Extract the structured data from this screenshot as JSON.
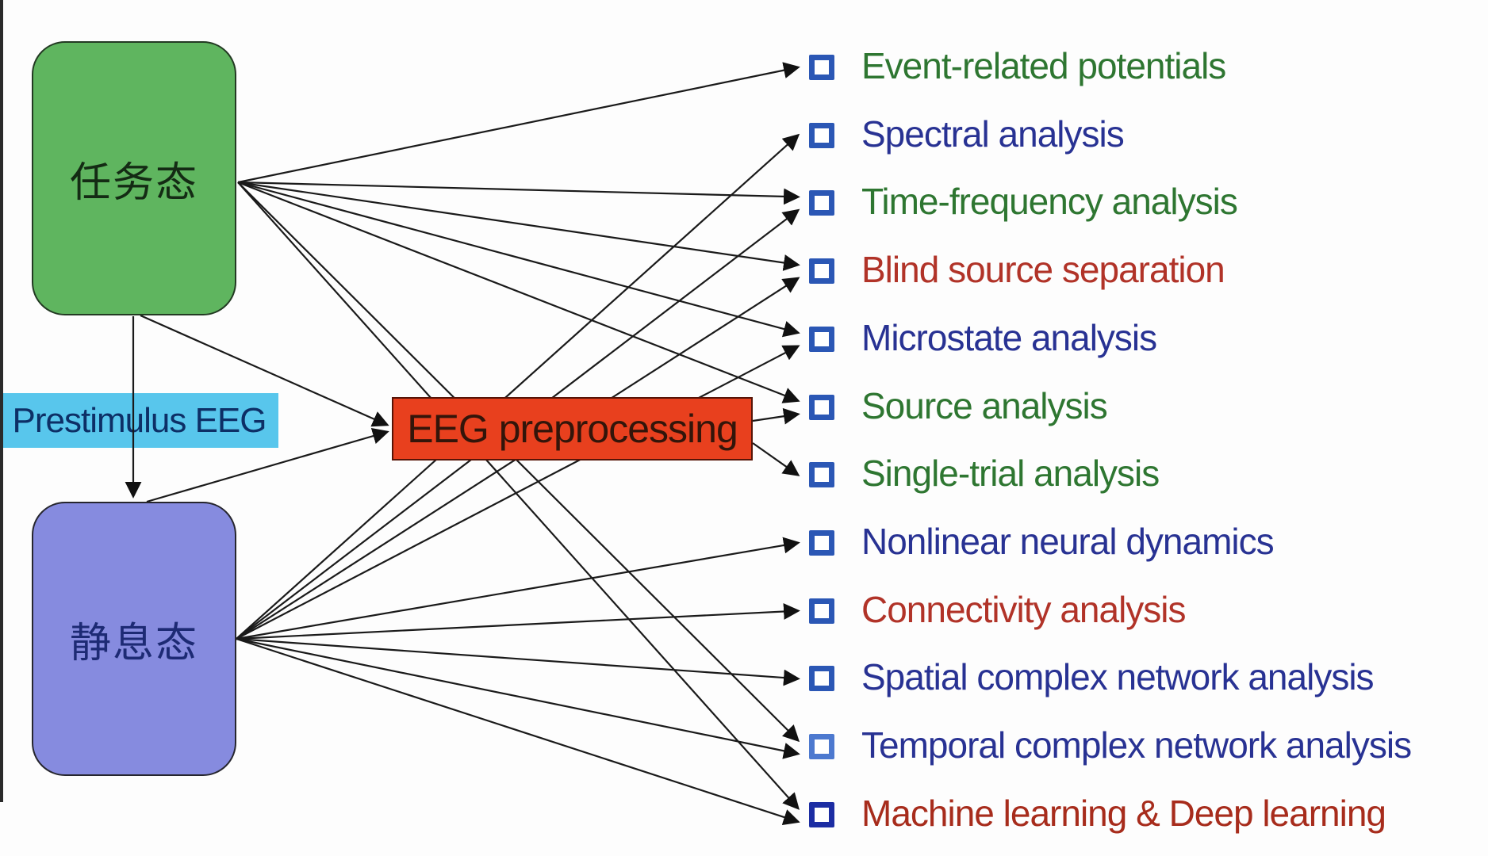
{
  "arrow_color": "#1a1a1a",
  "nodes": {
    "task_state": {
      "label": "任务态",
      "fill": "#5fb55f",
      "text_color": "#142b14"
    },
    "resting_state": {
      "label": "静息态",
      "fill": "#868bdf",
      "text_color": "#1d2a74"
    },
    "prestimulus": {
      "label": "Prestimulus EEG",
      "fill": "#58c6ec",
      "text_color": "#0d2f66"
    },
    "preprocessing": {
      "label": "EEG preprocessing",
      "fill": "#e8401e",
      "text_color": "#33150a"
    }
  },
  "methods": [
    {
      "id": "erp",
      "label": "Event-related potentials",
      "color": "#2e7631",
      "bullet": "#2b57b5"
    },
    {
      "id": "spectral",
      "label": "Spectral analysis",
      "color": "#283293",
      "bullet": "#2b57b5"
    },
    {
      "id": "time_frequency",
      "label": "Time-frequency analysis",
      "color": "#2e7631",
      "bullet": "#2b57b5"
    },
    {
      "id": "blind_source",
      "label": "Blind source separation",
      "color": "#b13328",
      "bullet": "#2b57b5"
    },
    {
      "id": "microstate",
      "label": "Microstate analysis",
      "color": "#283293",
      "bullet": "#2b57b5"
    },
    {
      "id": "source",
      "label": "Source analysis",
      "color": "#2e7631",
      "bullet": "#2b57b5"
    },
    {
      "id": "single_trial",
      "label": "Single-trial analysis",
      "color": "#2e7631",
      "bullet": "#2b57b5"
    },
    {
      "id": "nonlinear",
      "label": "Nonlinear neural dynamics",
      "color": "#283293",
      "bullet": "#2b57b5"
    },
    {
      "id": "connectivity",
      "label": "Connectivity analysis",
      "color": "#b13328",
      "bullet": "#2b57b5"
    },
    {
      "id": "spatial_network",
      "label": "Spatial complex network analysis",
      "color": "#283293",
      "bullet": "#2b57b5"
    },
    {
      "id": "temporal_network",
      "label": "Temporal complex network analysis",
      "color": "#283293",
      "bullet": "#4d79cf"
    },
    {
      "id": "machine_learning",
      "label": "Machine learning & Deep learning",
      "color": "#a72c1c",
      "bullet": "#1c2da3"
    }
  ],
  "edges": [
    {
      "from": "task_state",
      "to": "erp"
    },
    {
      "from": "task_state",
      "to": "time_frequency"
    },
    {
      "from": "task_state",
      "to": "blind_source"
    },
    {
      "from": "task_state",
      "to": "microstate"
    },
    {
      "from": "task_state",
      "to": "source"
    },
    {
      "from": "task_state",
      "to": "temporal_network"
    },
    {
      "from": "task_state",
      "to": "machine_learning"
    },
    {
      "from": "task_state",
      "to": "preprocessing"
    },
    {
      "from": "task_state",
      "to": "resting_state"
    },
    {
      "from": "resting_state",
      "to": "spectral"
    },
    {
      "from": "resting_state",
      "to": "time_frequency"
    },
    {
      "from": "resting_state",
      "to": "blind_source"
    },
    {
      "from": "resting_state",
      "to": "microstate"
    },
    {
      "from": "resting_state",
      "to": "nonlinear"
    },
    {
      "from": "resting_state",
      "to": "connectivity"
    },
    {
      "from": "resting_state",
      "to": "spatial_network"
    },
    {
      "from": "resting_state",
      "to": "temporal_network"
    },
    {
      "from": "resting_state",
      "to": "machine_learning"
    },
    {
      "from": "resting_state",
      "to": "preprocessing"
    },
    {
      "from": "preprocessing",
      "to": "source"
    },
    {
      "from": "preprocessing",
      "to": "single_trial"
    }
  ]
}
